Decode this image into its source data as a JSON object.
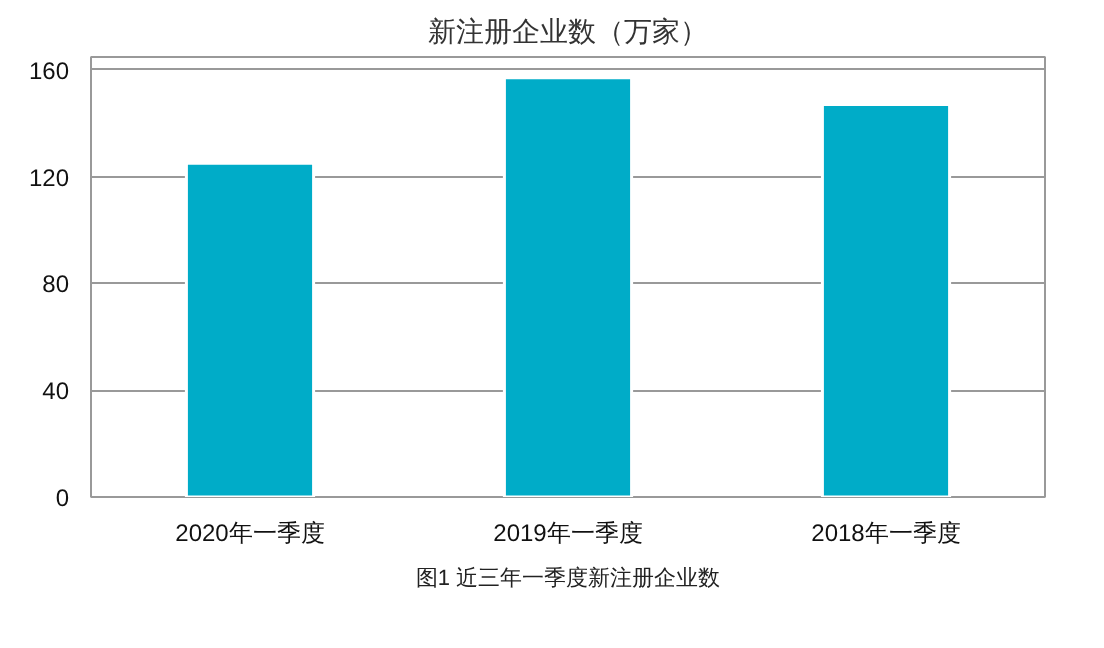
{
  "chart_data": {
    "type": "bar",
    "title": "新注册企业数（万家）",
    "categories": [
      "2020年一季度",
      "2019年一季度",
      "2018年一季度"
    ],
    "values": [
      125,
      157,
      147
    ],
    "color": "#00acc8",
    "ylim": [
      0,
      160
    ],
    "yticks": [
      0,
      40,
      80,
      120,
      160
    ],
    "grid": "y",
    "annotations": [
      "图1 近三年一季度新注册企业数"
    ]
  }
}
